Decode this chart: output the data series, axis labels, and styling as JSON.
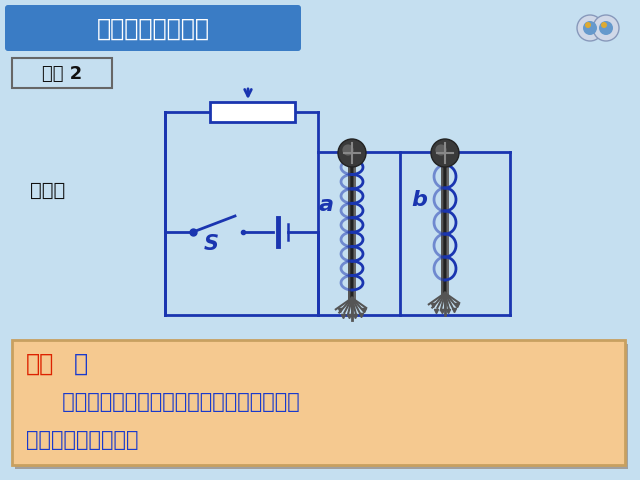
{
  "bg_color": "#c5dff0",
  "title_bg_left": "#3a7cc5",
  "title_bg_right": "#5a9ad0",
  "title_text": "二、电磁铁的磁性",
  "title_color": "#ffffff",
  "demo_text": "演示 2",
  "phenomenon_text": "现象：",
  "conclusion_bg": "#f5c990",
  "conclusion_border": "#c8a060",
  "conclusion_label": "结论",
  "conclusion_label_color": "#dd2200",
  "conclusion_body_color": "#1a3acc",
  "conclusion_line2": "     电流一定时，外形相同的螺线管匝数越多，",
  "conclusion_line3": "电磁铁的磁性越强。",
  "circuit_color": "#1a35b0",
  "label_a": "a",
  "label_b": "b",
  "white_bg": "#ffffff"
}
